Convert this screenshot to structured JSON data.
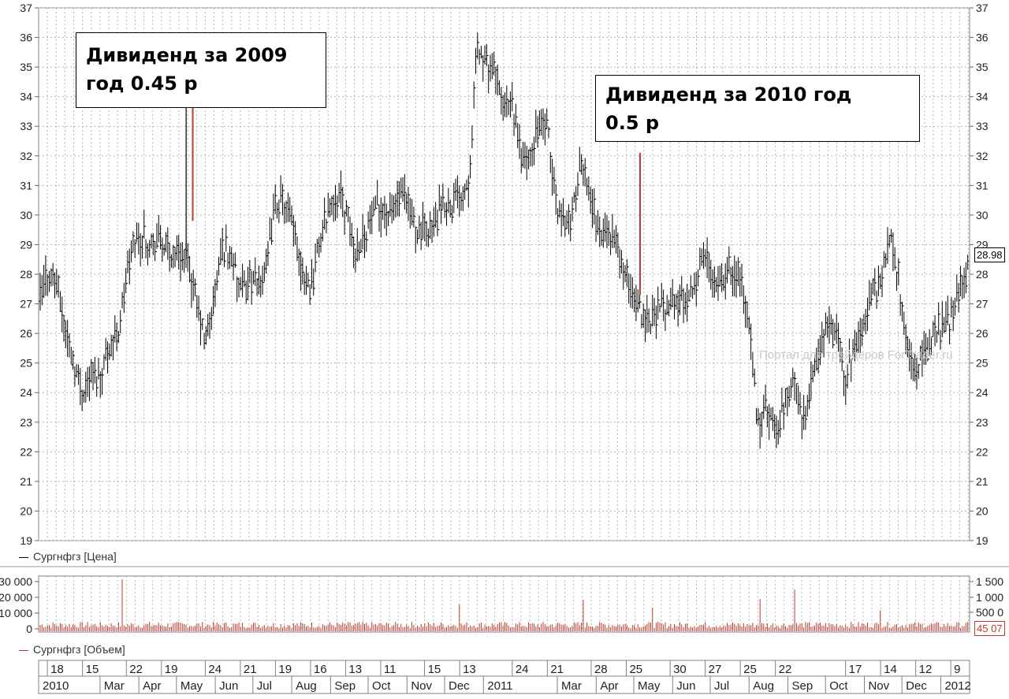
{
  "chart_data": [
    {
      "type": "ohlc",
      "ylim": [
        19,
        37
      ],
      "yticks": [
        "19",
        "20",
        "21",
        "22",
        "23",
        "24",
        "25",
        "26",
        "27",
        "28",
        "29",
        "30",
        "31",
        "32",
        "33",
        "34",
        "35",
        "36",
        "37"
      ],
      "last_value": "28.98",
      "legend": "Сургнфгз [Цена]",
      "annotations": [
        {
          "lines": [
            "Дивиденд за 2009",
            "год 0.45 р"
          ]
        },
        {
          "lines": [
            "Дивиденд за 2010 год",
            "0.5 р"
          ]
        }
      ],
      "watermark": "Портал для трейдеров ForTrader.ru",
      "price_path": [
        [
          "2010-01-11",
          27.0
        ],
        [
          "2010-01-18",
          28.0
        ],
        [
          "2010-01-25",
          27.8
        ],
        [
          "2010-02-01",
          26.2
        ],
        [
          "2010-02-08",
          25.0
        ],
        [
          "2010-02-15",
          24.0
        ],
        [
          "2010-02-22",
          24.7
        ],
        [
          "2010-03-01",
          24.5
        ],
        [
          "2010-03-08",
          25.6
        ],
        [
          "2010-03-15",
          25.9
        ],
        [
          "2010-03-22",
          27.8
        ],
        [
          "2010-03-29",
          29.2
        ],
        [
          "2010-04-05",
          29.3
        ],
        [
          "2010-04-12",
          29.0
        ],
        [
          "2010-04-19",
          29.1
        ],
        [
          "2010-04-26",
          28.7
        ],
        [
          "2010-05-03",
          28.8
        ],
        [
          "2010-05-10",
          28.4
        ],
        [
          "2010-05-17",
          27.0
        ],
        [
          "2010-05-24",
          25.6
        ],
        [
          "2010-05-31",
          27.2
        ],
        [
          "2010-06-07",
          29.0
        ],
        [
          "2010-06-14",
          28.6
        ],
        [
          "2010-06-21",
          27.3
        ],
        [
          "2010-06-28",
          27.8
        ],
        [
          "2010-07-05",
          27.6
        ],
        [
          "2010-07-12",
          28.3
        ],
        [
          "2010-07-19",
          30.5
        ],
        [
          "2010-07-26",
          30.4
        ],
        [
          "2010-08-02",
          29.5
        ],
        [
          "2010-08-09",
          28.2
        ],
        [
          "2010-08-16",
          27.5
        ],
        [
          "2010-08-23",
          29.0
        ],
        [
          "2010-08-30",
          30.2
        ],
        [
          "2010-09-06",
          30.8
        ],
        [
          "2010-09-13",
          30.2
        ],
        [
          "2010-09-20",
          28.7
        ],
        [
          "2010-09-27",
          29.3
        ],
        [
          "2010-10-04",
          29.9
        ],
        [
          "2010-10-11",
          30.3
        ],
        [
          "2010-10-18",
          30.0
        ],
        [
          "2010-10-25",
          30.6
        ],
        [
          "2010-11-01",
          30.3
        ],
        [
          "2010-11-08",
          29.6
        ],
        [
          "2010-11-15",
          29.5
        ],
        [
          "2010-11-22",
          29.6
        ],
        [
          "2010-11-29",
          30.2
        ],
        [
          "2010-12-06",
          30.3
        ],
        [
          "2010-12-13",
          30.7
        ],
        [
          "2010-12-20",
          31.2
        ],
        [
          "2010-12-27",
          35.6
        ],
        [
          "2011-01-10",
          34.7
        ],
        [
          "2011-01-17",
          33.7
        ],
        [
          "2011-01-24",
          33.6
        ],
        [
          "2011-01-31",
          32.0
        ],
        [
          "2011-02-07",
          31.8
        ],
        [
          "2011-02-14",
          33.1
        ],
        [
          "2011-02-21",
          32.8
        ],
        [
          "2011-02-28",
          30.3
        ],
        [
          "2011-03-07",
          29.7
        ],
        [
          "2011-03-14",
          30.2
        ],
        [
          "2011-03-21",
          31.8
        ],
        [
          "2011-03-28",
          30.5
        ],
        [
          "2011-04-04",
          29.3
        ],
        [
          "2011-04-11",
          29.5
        ],
        [
          "2011-04-18",
          28.8
        ],
        [
          "2011-04-25",
          27.8
        ],
        [
          "2011-05-02",
          27.3
        ],
        [
          "2011-05-09",
          26.6
        ],
        [
          "2011-05-16",
          26.5
        ],
        [
          "2011-05-23",
          26.8
        ],
        [
          "2011-05-30",
          27.1
        ],
        [
          "2011-06-06",
          27.0
        ],
        [
          "2011-06-13",
          27.3
        ],
        [
          "2011-06-20",
          27.9
        ],
        [
          "2011-06-27",
          28.6
        ],
        [
          "2011-07-04",
          28.0
        ],
        [
          "2011-07-11",
          27.8
        ],
        [
          "2011-07-18",
          28.3
        ],
        [
          "2011-07-25",
          27.9
        ],
        [
          "2011-08-01",
          26.2
        ],
        [
          "2011-08-08",
          22.8
        ],
        [
          "2011-08-15",
          23.5
        ],
        [
          "2011-08-22",
          22.5
        ],
        [
          "2011-08-29",
          23.5
        ],
        [
          "2011-09-05",
          24.4
        ],
        [
          "2011-09-12",
          23.2
        ],
        [
          "2011-09-19",
          24.0
        ],
        [
          "2011-09-26",
          25.6
        ],
        [
          "2011-10-03",
          26.2
        ],
        [
          "2011-10-10",
          25.8
        ],
        [
          "2011-10-17",
          24.5
        ],
        [
          "2011-10-24",
          25.5
        ],
        [
          "2011-10-31",
          26.4
        ],
        [
          "2011-11-07",
          27.3
        ],
        [
          "2011-11-14",
          27.8
        ],
        [
          "2011-11-21",
          29.2
        ],
        [
          "2011-11-28",
          28.0
        ],
        [
          "2011-12-05",
          25.4
        ],
        [
          "2011-12-12",
          24.8
        ],
        [
          "2011-12-19",
          25.3
        ],
        [
          "2011-12-26",
          26.0
        ],
        [
          "2012-01-09",
          26.4
        ],
        [
          "2012-01-16",
          27.8
        ],
        [
          "2012-01-23",
          28.2
        ]
      ],
      "bar_style": {
        "color": "#000000"
      }
    },
    {
      "type": "bar",
      "left_yticks": [
        "0",
        "10 000",
        "20 000",
        "30 000"
      ],
      "right_yticks": [
        "500 0",
        "1 000",
        "1 500"
      ],
      "last_value": "45 07",
      "legend": "Сургнфгз [Объем]",
      "bar_color": "#c0392b",
      "spikes": [
        [
          "2010-03-19",
          1.0
        ],
        [
          "2010-12-13",
          0.52
        ],
        [
          "2011-03-22",
          0.6
        ],
        [
          "2011-05-16",
          0.45
        ],
        [
          "2011-08-10",
          0.62
        ],
        [
          "2011-09-06",
          0.8
        ],
        [
          "2011-11-14",
          0.4
        ],
        [
          "2012-01-24",
          0.35
        ]
      ]
    }
  ],
  "time_axis": {
    "day_labels": [
      "18",
      "15",
      "22",
      "19",
      "24",
      "21",
      "19",
      "16",
      "13",
      "11",
      "15",
      "13",
      "24",
      "21",
      "28",
      "25",
      "30",
      "27",
      "25",
      "22",
      "17",
      "14",
      "12",
      "9"
    ],
    "month_labels": [
      "2010",
      "Mar",
      "Apr",
      "May",
      "Jun",
      "Jul",
      "Aug",
      "Sep",
      "Oct",
      "Nov",
      "Dec",
      "2011",
      "Mar",
      "Apr",
      "May",
      "Jun",
      "Jul",
      "Aug",
      "Sep",
      "Oct",
      "Nov",
      "Dec",
      "2012"
    ]
  },
  "colors": {
    "price": "#000000",
    "volume": "#c0392b",
    "marker": "#c0392b",
    "grid": "#b4b4b4"
  }
}
